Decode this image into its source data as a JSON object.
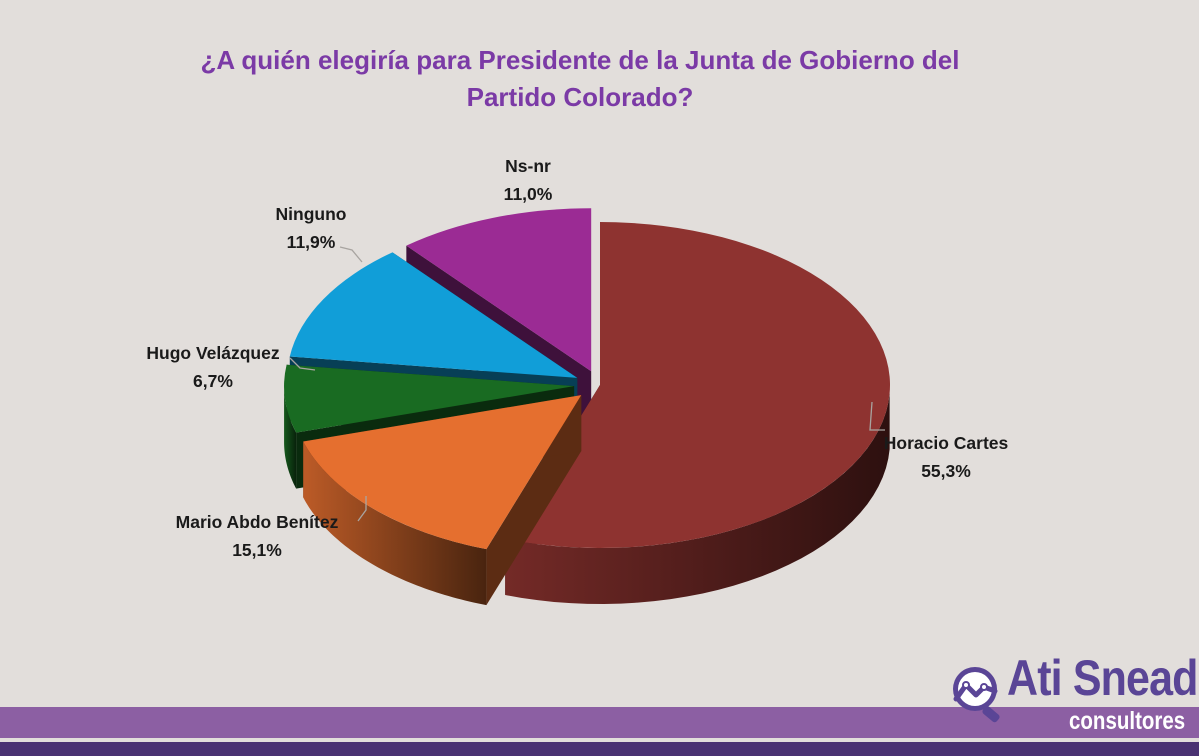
{
  "chart_data": {
    "type": "pie",
    "title": "¿A quién elegiría para Presidente de la Junta de Gobierno del Partido Colorado?",
    "title_lines": [
      "¿A quién elegiría para Presidente de la Junta de Gobierno del",
      "Partido Colorado?"
    ],
    "three_d": true,
    "slices": [
      {
        "label": "Horacio Cartes",
        "value": 55.3,
        "value_label": "55,3%",
        "color": "#8e3330",
        "exploded": false
      },
      {
        "label": "Mario Abdo Benítez",
        "value": 15.1,
        "value_label": "15,1%",
        "color": "#e56f2f",
        "exploded": true
      },
      {
        "label": "Hugo Velázquez",
        "value": 6.7,
        "value_label": "6,7%",
        "color": "#196b22",
        "exploded": true
      },
      {
        "label": "Ninguno",
        "value": 11.9,
        "value_label": "11,9%",
        "color": "#119ed8",
        "exploded": true
      },
      {
        "label": "Ns-nr",
        "value": 11.0,
        "value_label": "11,0%",
        "color": "#9b2b94",
        "exploded": true
      }
    ]
  },
  "branding": {
    "brand_name": "Ati Snead",
    "brand_sub": "consultores",
    "brand_color": "#5a4596",
    "bar_color": "#8c5fa3",
    "line_color": "#4a3272"
  }
}
